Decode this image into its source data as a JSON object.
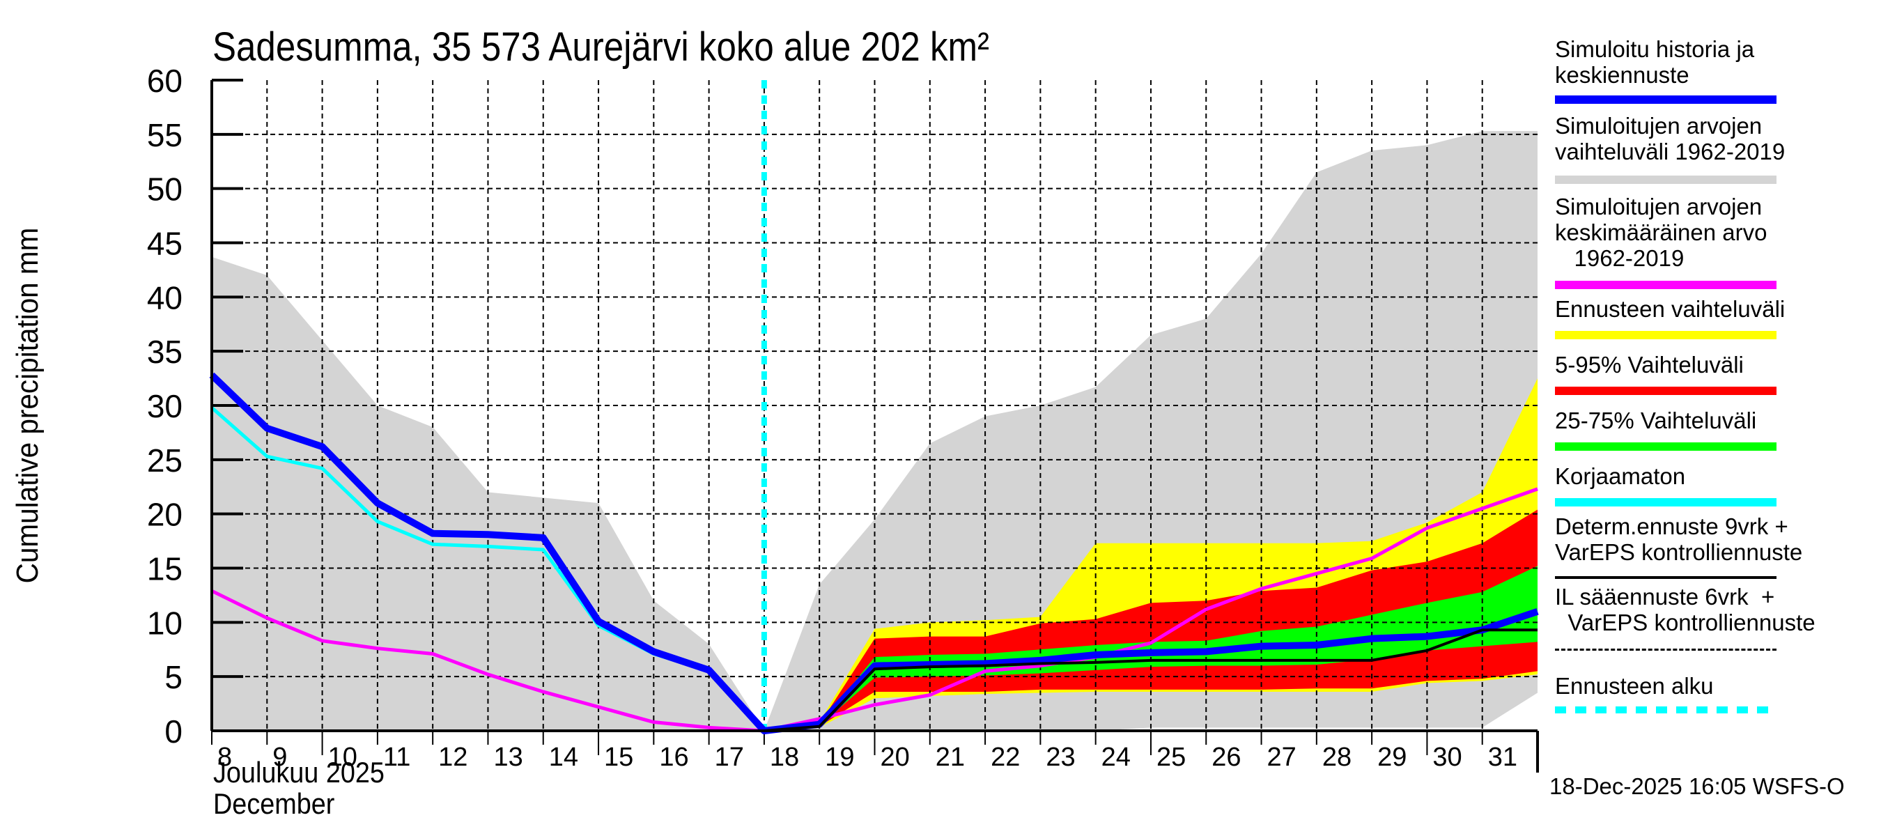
{
  "chart_data": {
    "type": "area",
    "title": "Sadesumma, 35 573 Aurejärvi koko alue 202 km²",
    "ylabel": "Cumulative precipitation   mm",
    "xlabel_lines": [
      "Joulukuu  2025",
      "December"
    ],
    "ylim": [
      0,
      60
    ],
    "xlim": [
      8,
      32
    ],
    "yticks": [
      "0",
      "5",
      "10",
      "15",
      "20",
      "25",
      "30",
      "35",
      "40",
      "45",
      "50",
      "55",
      "60"
    ],
    "xticks": [
      "8",
      "9",
      "10",
      "11",
      "12",
      "13",
      "14",
      "15",
      "16",
      "17",
      "18",
      "19",
      "20",
      "21",
      "22",
      "23",
      "24",
      "25",
      "26",
      "27",
      "28",
      "29",
      "30",
      "31"
    ],
    "grid": true,
    "forecast_start_day": 18,
    "series": [
      {
        "name": "Simuloitujen arvojen vaihteluväli 1962-2019",
        "kind": "band",
        "color": "#d4d4d4",
        "x": [
          8,
          9,
          10,
          11,
          12,
          13,
          14,
          15,
          16,
          17,
          18,
          19,
          20,
          21,
          22,
          23,
          24,
          25,
          26,
          27,
          28,
          29,
          30,
          31,
          32
        ],
        "upper": [
          43.7,
          42,
          36,
          30,
          28,
          22,
          21.5,
          21,
          12,
          8,
          0,
          13.5,
          19.5,
          26.5,
          29,
          30,
          31.7,
          36.5,
          38,
          44,
          51.5,
          53.5,
          54,
          55.3,
          55.3
        ],
        "lower": [
          0,
          0,
          0,
          0,
          0,
          0,
          0,
          0,
          0,
          0,
          0,
          0,
          0,
          0,
          0,
          0,
          0,
          0.3,
          0.3,
          0.3,
          0.3,
          0.3,
          0.3,
          0.3,
          3.5
        ]
      },
      {
        "name": "Ennusteen vaihteluväli",
        "kind": "band",
        "color": "#ffff00",
        "x": [
          18,
          19,
          20,
          21,
          22,
          23,
          24,
          25,
          26,
          27,
          28,
          29,
          30,
          31,
          32
        ],
        "upper": [
          0,
          0.8,
          9.4,
          10.0,
          10.2,
          10.5,
          17.3,
          17.3,
          17.3,
          17.3,
          17.3,
          17.5,
          19.2,
          22.0,
          32.5
        ],
        "lower": [
          0,
          0.3,
          3.0,
          3.2,
          3.4,
          3.5,
          3.6,
          3.6,
          3.6,
          3.6,
          3.6,
          3.6,
          4.4,
          4.6,
          5.2
        ]
      },
      {
        "name": "5-95% Vaihteluväli",
        "kind": "band",
        "color": "#ff0000",
        "x": [
          18,
          19,
          20,
          21,
          22,
          23,
          24,
          25,
          26,
          27,
          28,
          29,
          30,
          31,
          32
        ],
        "upper": [
          0,
          0.6,
          8.5,
          8.7,
          8.7,
          9.9,
          10.3,
          11.8,
          12.0,
          12.9,
          13.2,
          14.8,
          15.6,
          17.3,
          20.4
        ],
        "lower": [
          0,
          0.4,
          3.6,
          3.6,
          3.6,
          3.8,
          3.8,
          3.8,
          3.8,
          3.8,
          3.9,
          3.9,
          4.6,
          4.8,
          5.5
        ]
      },
      {
        "name": "25-75% Vaihteluväli",
        "kind": "band",
        "color": "#00ff00",
        "x": [
          18,
          19,
          20,
          21,
          22,
          23,
          24,
          25,
          26,
          27,
          28,
          29,
          30,
          31,
          32
        ],
        "upper": [
          0,
          0.5,
          6.8,
          7.0,
          7.1,
          7.5,
          7.9,
          8.2,
          8.3,
          9.2,
          9.6,
          10.7,
          11.8,
          12.8,
          15.2
        ],
        "lower": [
          0,
          0.5,
          4.9,
          5.0,
          5.1,
          5.3,
          5.6,
          5.9,
          6.0,
          6.0,
          6.1,
          6.6,
          7.4,
          7.8,
          8.2
        ]
      },
      {
        "name": "Simuloitujen arvojen keskimääräinen arvo 1962-2019",
        "kind": "line",
        "color": "#ff00ff",
        "width": 5,
        "x": [
          8,
          9,
          10,
          11,
          12,
          13,
          14,
          15,
          16,
          17,
          18,
          19,
          20,
          21,
          22,
          23,
          24,
          25,
          26,
          27,
          28,
          29,
          30,
          31,
          32
        ],
        "values": [
          12.9,
          10.4,
          8.3,
          7.6,
          7.1,
          5.2,
          3.6,
          2.2,
          0.8,
          0.3,
          0,
          1.1,
          2.4,
          3.3,
          5.5,
          6.0,
          6.8,
          8.1,
          11.2,
          13.1,
          14.5,
          15.9,
          18.7,
          20.5,
          22.3
        ]
      },
      {
        "name": "Korjaamaton",
        "kind": "line",
        "color": "#00ffff",
        "width": 5,
        "x": [
          8,
          9,
          10,
          11,
          12,
          13,
          14,
          15,
          16,
          17,
          18
        ],
        "values": [
          29.8,
          25.3,
          24.2,
          19.3,
          17.2,
          17.0,
          16.7,
          9.7,
          7.1,
          5.5,
          0
        ]
      },
      {
        "name": "Simuloitu historia ja keskiennuste",
        "kind": "line",
        "color": "#0000ff",
        "width": 10,
        "x": [
          8,
          9,
          10,
          11,
          12,
          13,
          14,
          15,
          16,
          17,
          18,
          19,
          20,
          21,
          22,
          23,
          24,
          25,
          26,
          27,
          28,
          29,
          30,
          31,
          32
        ],
        "values": [
          32.8,
          27.9,
          26.2,
          21.0,
          18.2,
          18.1,
          17.8,
          10.1,
          7.3,
          5.6,
          0,
          0.6,
          6.0,
          6.1,
          6.2,
          6.5,
          7.0,
          7.2,
          7.3,
          7.8,
          7.9,
          8.5,
          8.7,
          9.3,
          11.0
        ]
      },
      {
        "name": "Determ.ennuste 9vrk + VarEPS kontrolliennuste",
        "kind": "line",
        "color": "#000000",
        "width": 4,
        "x": [
          18,
          19,
          20,
          21,
          22,
          23,
          24,
          25,
          26,
          27,
          28,
          29,
          30,
          31,
          32
        ],
        "values": [
          0,
          0.4,
          5.7,
          5.9,
          6.0,
          6.2,
          6.3,
          6.5,
          6.5,
          6.5,
          6.5,
          6.5,
          7.4,
          9.3,
          9.3
        ]
      }
    ]
  },
  "legend": [
    {
      "label": "Simuloitu historia ja\nkeskiennuste",
      "color": "#0000ff",
      "style": "solid"
    },
    {
      "label": "Simuloitujen arvojen\nvaihteluväli 1962-2019",
      "color": "#d4d4d4",
      "style": "solid"
    },
    {
      "label": "Simuloitujen arvojen\nkeskimääräinen arvo\n   1962-2019",
      "color": "#ff00ff",
      "style": "solid"
    },
    {
      "label": "Ennusteen vaihteluväli",
      "color": "#ffff00",
      "style": "solid"
    },
    {
      "label": "5-95% Vaihteluväli",
      "color": "#ff0000",
      "style": "solid"
    },
    {
      "label": "25-75% Vaihteluväli",
      "color": "#00ff00",
      "style": "solid"
    },
    {
      "label": "Korjaamaton",
      "color": "#00ffff",
      "style": "solid"
    },
    {
      "label": "Determ.ennuste 9vrk +\nVarEPS kontrolliennuste",
      "color": "#000000",
      "style": "solid"
    },
    {
      "label": "IL sääennuste 6vrk  +\n  VarEPS kontrolliennuste",
      "color": "#000000",
      "style": "dashed"
    },
    {
      "label": "Ennusteen alku",
      "color": "#00ffff",
      "style": "dotted"
    }
  ],
  "footer": "18-Dec-2025 16:05 WSFS-O"
}
